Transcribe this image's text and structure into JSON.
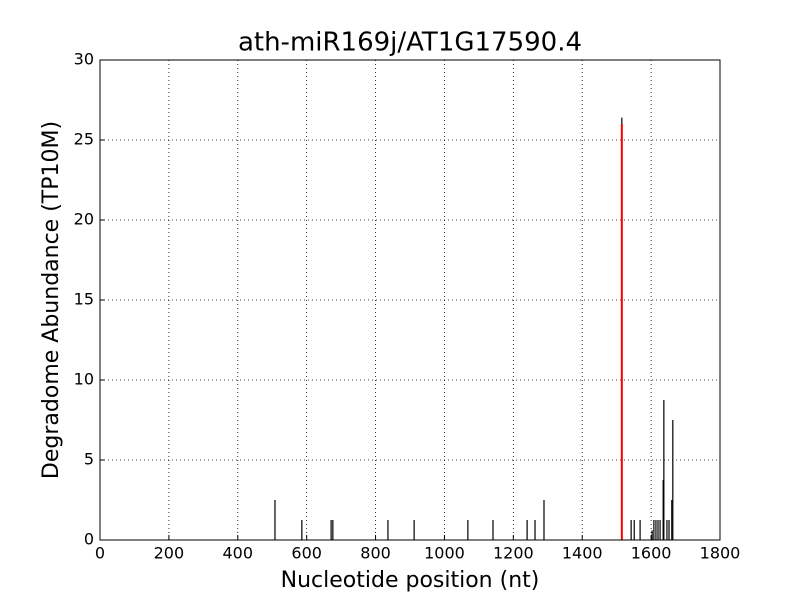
{
  "chart_data": {
    "type": "stem",
    "title": "ath-miR169j/AT1G17590.4",
    "x_label": "Nucleotide position (nt)",
    "y_label": "Degradome Abundance (TP10M)",
    "xlim": [
      0,
      1800
    ],
    "xticks": [
      0,
      200,
      400,
      600,
      800,
      1000,
      1200,
      1400,
      1600,
      1800
    ],
    "ylim": [
      0,
      30
    ],
    "yticks": [
      0,
      5,
      10,
      15,
      20,
      25,
      30
    ],
    "grid": true,
    "series": [
      {
        "color": "#000000",
        "x": [
          508,
          586,
          671,
          676,
          836,
          912,
          1068,
          1141,
          1240,
          1263,
          1289,
          1515,
          1542,
          1551,
          1568,
          1603,
          1608,
          1614,
          1620,
          1626,
          1635,
          1637,
          1646,
          1652,
          1660,
          1663
        ],
        "values": [
          2.5,
          1.25,
          1.25,
          1.25,
          1.25,
          1.25,
          1.25,
          1.25,
          1.25,
          1.25,
          2.5,
          26.4,
          1.25,
          1.25,
          1.25,
          0.6,
          1.25,
          1.25,
          1.25,
          1.25,
          3.75,
          8.75,
          1.25,
          1.25,
          2.5,
          7.5
        ]
      },
      {
        "color": "#ff0000",
        "x": [
          1515
        ],
        "values": [
          26
        ]
      }
    ]
  }
}
